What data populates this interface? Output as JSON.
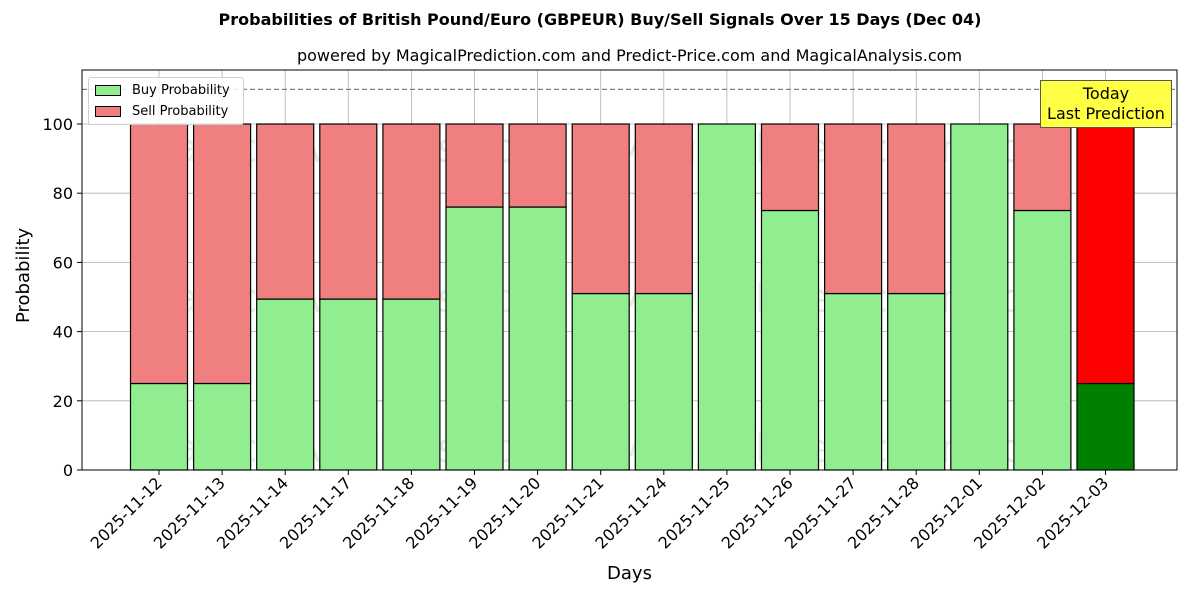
{
  "chart_data": {
    "type": "bar",
    "stacked": true,
    "title": "Probabilities of British Pound/Euro (GBPEUR) Buy/Sell Signals Over 15 Days (Dec 04)",
    "subtitle": "powered by MagicalPrediction.com and Predict-Price.com and MagicalAnalysis.com",
    "xlabel": "Days",
    "ylabel": "Probability",
    "ylim": [
      0,
      115
    ],
    "yticks": [
      0,
      20,
      40,
      60,
      80,
      100
    ],
    "grid": true,
    "legend_position": "upper left",
    "reference_line": {
      "y": 110,
      "style": "dashed",
      "color": "#808080"
    },
    "categories": [
      "2025-11-12",
      "2025-11-13",
      "2025-11-14",
      "2025-11-17",
      "2025-11-18",
      "2025-11-19",
      "2025-11-20",
      "2025-11-21",
      "2025-11-24",
      "2025-11-25",
      "2025-11-26",
      "2025-11-27",
      "2025-11-28",
      "2025-12-01",
      "2025-12-02",
      "2025-12-03"
    ],
    "series": [
      {
        "name": "Buy Probability",
        "color": "#90ee90",
        "values": [
          25,
          25,
          49.4,
          49.4,
          49.4,
          76,
          76,
          51,
          51,
          100,
          75,
          51,
          51,
          100,
          75,
          25
        ]
      },
      {
        "name": "Sell Probability",
        "color": "#f08080",
        "values": [
          75,
          75,
          50.6,
          50.6,
          50.6,
          24,
          24,
          49,
          49,
          0,
          25,
          49,
          49,
          0,
          25,
          75
        ]
      }
    ],
    "highlight": {
      "index": 15,
      "buy_color": "#008000",
      "sell_color": "#ff0000",
      "annotation": "Today\nLast Prediction"
    },
    "watermarks": [
      "MagicalAnalysis.com",
      "MagicalPrediction.com"
    ]
  },
  "legend": {
    "buy_label": "Buy Probability",
    "sell_label": "Sell Probability"
  },
  "annotation": {
    "line1": "Today",
    "line2": "Last Prediction"
  }
}
